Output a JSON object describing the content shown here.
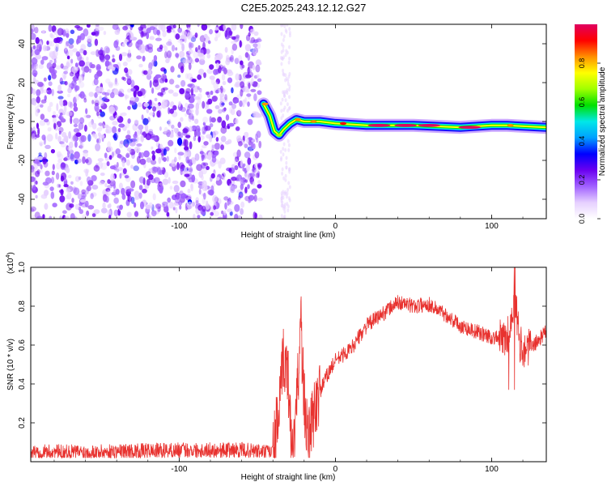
{
  "title": "C2E5.2025.243.12.12.G27",
  "colors": {
    "snr_line": "#e8322f",
    "axis": "#000000",
    "colormap": [
      "#ffffff",
      "#e6d0ff",
      "#a060ff",
      "#6a00f0",
      "#0000ff",
      "#00a0ff",
      "#00e8e8",
      "#00e000",
      "#a0ff00",
      "#ffff00",
      "#ff9000",
      "#ff0000",
      "#e00060"
    ]
  },
  "chart_data": [
    {
      "type": "heatmap",
      "title": "C2E5.2025.243.12.12.G27",
      "xlabel": "Height of straight line (km)",
      "ylabel": "Frequency (Hz)",
      "xlim": [
        -195,
        135
      ],
      "ylim": [
        -50,
        50
      ],
      "xticks": [
        -100,
        0,
        100
      ],
      "yticks": [
        -40,
        -20,
        0,
        20,
        40
      ],
      "colorbar": {
        "label": "Normalized spectral amplitude",
        "range": [
          0,
          1
        ],
        "ticks": [
          0.0,
          0.2,
          0.4,
          0.6,
          0.8
        ]
      },
      "regions": [
        {
          "description": "noise",
          "x": [
            -195,
            -48
          ],
          "y": [
            -50,
            50
          ],
          "amplitude": 0.15
        },
        {
          "description": "signal",
          "x": [
            -48,
            135
          ],
          "frequency_hz": 0,
          "amplitude": 0.9
        }
      ],
      "signal_track": [
        {
          "x": -46,
          "y": 9
        },
        {
          "x": -42,
          "y": 3
        },
        {
          "x": -39,
          "y": -5
        },
        {
          "x": -36,
          "y": -7
        },
        {
          "x": -33,
          "y": -4
        },
        {
          "x": -29,
          "y": -1
        },
        {
          "x": -25,
          "y": 1
        },
        {
          "x": -20,
          "y": 0
        },
        {
          "x": -10,
          "y": 0
        },
        {
          "x": 0,
          "y": -1
        },
        {
          "x": 20,
          "y": -2
        },
        {
          "x": 50,
          "y": -2
        },
        {
          "x": 80,
          "y": -3
        },
        {
          "x": 100,
          "y": -2
        },
        {
          "x": 110,
          "y": -2
        },
        {
          "x": 135,
          "y": -3
        }
      ]
    },
    {
      "type": "line",
      "xlabel": "Height of straight line (km)",
      "ylabel": "SNR (10 * v/v)",
      "y_multiplier": "(x10",
      "y_multiplier_exp": "4",
      "xlim": [
        -195,
        135
      ],
      "ylim": [
        0,
        1.0
      ],
      "xticks": [
        -100,
        0,
        100
      ],
      "yticks": [
        0.2,
        0.4,
        0.6,
        0.8,
        1.0
      ],
      "series": [
        {
          "x": [
            -195,
            -150,
            -100,
            -60,
            -45,
            -40,
            -36,
            -33,
            -30,
            -28,
            -25,
            -22,
            -20,
            -17,
            -12,
            -5,
            0,
            10,
            20,
            30,
            40,
            50,
            60,
            70,
            80,
            90,
            100,
            110,
            115,
            118,
            122,
            127,
            135
          ],
          "y": [
            0.05,
            0.05,
            0.06,
            0.06,
            0.05,
            0.05,
            0.25,
            0.55,
            0.4,
            0.05,
            0.25,
            0.7,
            0.3,
            0.1,
            0.32,
            0.45,
            0.52,
            0.58,
            0.7,
            0.76,
            0.82,
            0.8,
            0.81,
            0.76,
            0.7,
            0.67,
            0.64,
            0.63,
            0.85,
            0.6,
            0.58,
            0.6,
            0.67
          ],
          "noise": 0.04
        }
      ]
    }
  ]
}
